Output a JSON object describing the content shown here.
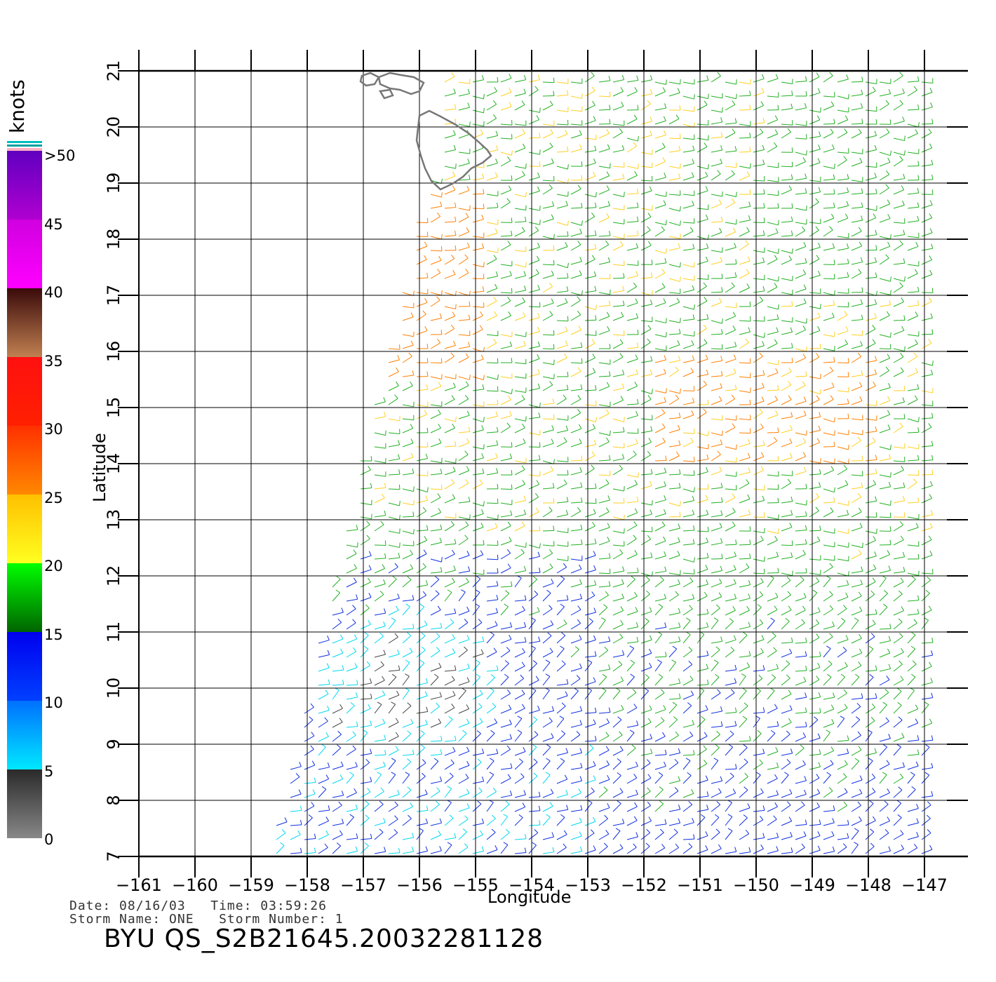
{
  "map": {
    "title": "",
    "lat_axis_label": "Latitude",
    "lon_axis_label": "Longitude",
    "lat_ticks": [
      "7",
      "8",
      "9",
      "10",
      "11",
      "12",
      "13",
      "14",
      "15",
      "16",
      "17",
      "18",
      "19",
      "20",
      "21"
    ],
    "lon_ticks": [
      "−161",
      "−160",
      "−159",
      "−158",
      "−157",
      "−156",
      "−155",
      "−154",
      "−153",
      "−152",
      "−151",
      "−150",
      "−149",
      "−148",
      "−147"
    ],
    "lat_range": [
      7,
      21
    ],
    "lon_range": [
      -161,
      -146.6
    ],
    "land": "Hawaiian Islands"
  },
  "colorbar": {
    "units": "knots",
    "labels": [
      "0",
      "5",
      "10",
      "15",
      "20",
      "25",
      "30",
      "35",
      "40",
      "45",
      ">50"
    ],
    "bands": [
      {
        "from": 0,
        "to": 5,
        "colors": [
          "#888888",
          "#2a2a2a"
        ]
      },
      {
        "from": 5,
        "to": 10,
        "colors": [
          "#00e8ff",
          "#0070ff"
        ]
      },
      {
        "from": 10,
        "to": 15,
        "colors": [
          "#0040ff",
          "#0000ee"
        ]
      },
      {
        "from": 15,
        "to": 20,
        "colors": [
          "#006400",
          "#00ff00"
        ]
      },
      {
        "from": 20,
        "to": 25,
        "colors": [
          "#ffff20",
          "#ffc000"
        ]
      },
      {
        "from": 25,
        "to": 30,
        "colors": [
          "#ff8800",
          "#ff3000"
        ]
      },
      {
        "from": 30,
        "to": 35,
        "colors": [
          "#ff2000",
          "#ff1010"
        ]
      },
      {
        "from": 35,
        "to": 40,
        "colors": [
          "#c08050",
          "#3a0a0a"
        ]
      },
      {
        "from": 40,
        "to": 45,
        "colors": [
          "#ff00ff",
          "#d000e0"
        ]
      },
      {
        "from": 45,
        "to": 50,
        "colors": [
          "#b000d0",
          "#6000c0"
        ]
      }
    ]
  },
  "footer": {
    "date_time": "Date: 08/16/03   Time: 03:59:26",
    "storm": "Storm Name: ONE   Storm Number: 1",
    "id": "BYU QS_S2B21645.20032281128"
  }
}
